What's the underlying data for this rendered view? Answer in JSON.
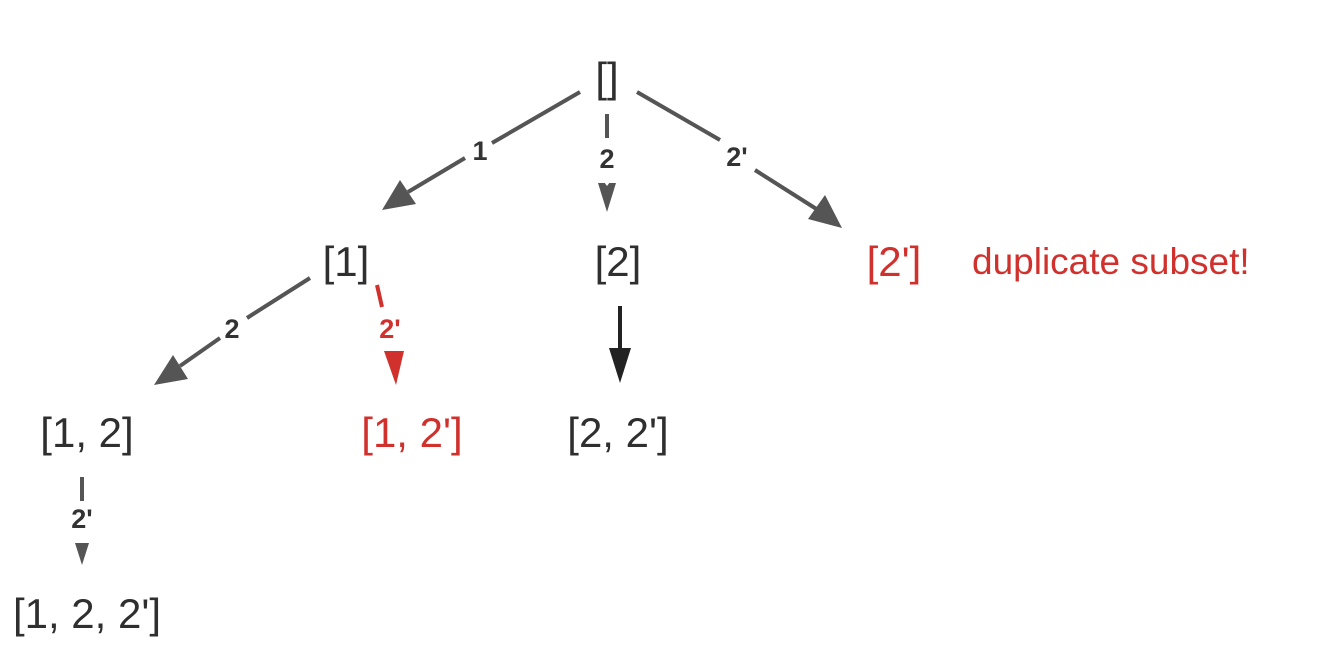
{
  "nodes": {
    "root": "[]",
    "n1": "[1]",
    "n2": "[2]",
    "n2p": "[2']",
    "n12": "[1, 2]",
    "n12p": "[1, 2']",
    "n22p": "[2, 2']",
    "n122p": "[1, 2, 2']"
  },
  "edges": {
    "root_n1": "1",
    "root_n2": "2",
    "root_n2p": "2'",
    "n1_n12": "2",
    "n1_n12p": "2'",
    "n12_n122p": "2'"
  },
  "annotation": "duplicate subset!",
  "colors": {
    "node_text": "#2f2f2f",
    "edge": "#555555",
    "duplicate_highlight": "#d0312d"
  }
}
